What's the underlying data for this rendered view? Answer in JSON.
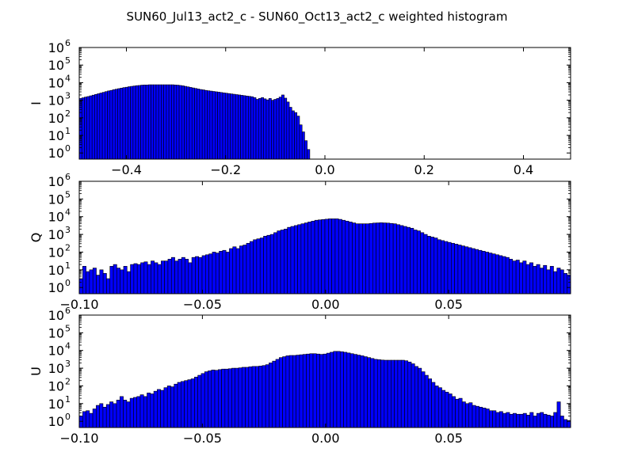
{
  "title": "SUN60_Jul13_act2_c - SUN60_Oct13_act2_c weighted histogram",
  "colors": {
    "bar_fill": "#0000ff",
    "bar_edge": "#000000",
    "background": "#ffffff",
    "frame": "#000000"
  },
  "chart_data": [
    {
      "type": "bar",
      "panel": "I",
      "ylabel": "I",
      "yscale": "log",
      "xlim": [
        -0.495,
        0.495
      ],
      "ylim_exp": [
        -0.35,
        6
      ],
      "xticks": [
        -0.4,
        -0.2,
        0.0,
        0.2,
        0.4
      ],
      "xtick_labels": [
        "−0.4",
        "−0.2",
        "0.0",
        "0.2",
        "0.4"
      ],
      "ytick_exps": [
        0,
        1,
        2,
        3,
        4,
        5,
        6
      ],
      "bin_range": [
        -0.495,
        -0.0305
      ],
      "bin_log10_counts": [
        3.1,
        3.14,
        3.18,
        3.21,
        3.25,
        3.29,
        3.33,
        3.37,
        3.41,
        3.45,
        3.49,
        3.53,
        3.56,
        3.6,
        3.63,
        3.66,
        3.69,
        3.72,
        3.74,
        3.77,
        3.79,
        3.81,
        3.83,
        3.84,
        3.86,
        3.87,
        3.87,
        3.88,
        3.88,
        3.88,
        3.88,
        3.88,
        3.88,
        3.88,
        3.88,
        3.88,
        3.88,
        3.87,
        3.86,
        3.84,
        3.82,
        3.79,
        3.76,
        3.73,
        3.7,
        3.67,
        3.64,
        3.61,
        3.59,
        3.56,
        3.54,
        3.52,
        3.5,
        3.48,
        3.46,
        3.44,
        3.42,
        3.4,
        3.38,
        3.36,
        3.34,
        3.32,
        3.3,
        3.28,
        3.26,
        3.24,
        3.22,
        3.2,
        3.15,
        3.05,
        3.1,
        3.15,
        3.08,
        3.02,
        3.1,
        3.0,
        3.05,
        3.1,
        3.18,
        3.3,
        3.12,
        2.9,
        2.6,
        2.4,
        2.3,
        2.1,
        1.6,
        1.2,
        0.7,
        0.2
      ]
    },
    {
      "type": "bar",
      "panel": "Q",
      "ylabel": "Q",
      "yscale": "log",
      "xlim": [
        -0.1,
        0.0995
      ],
      "ylim_exp": [
        -0.35,
        6
      ],
      "xticks": [
        -0.1,
        -0.05,
        0.0,
        0.05
      ],
      "xtick_labels": [
        "−0.10",
        "−0.05",
        "0.00",
        "0.05"
      ],
      "ytick_exps": [
        0,
        1,
        2,
        3,
        4,
        5,
        6
      ],
      "bin_range": [
        -0.1,
        0.0995
      ],
      "bin_log10_counts": [
        0.5,
        1.2,
        0.9,
        1.0,
        1.1,
        0.7,
        1.0,
        0.8,
        0.5,
        1.2,
        1.3,
        1.1,
        1.0,
        1.2,
        0.9,
        1.3,
        1.35,
        1.3,
        1.4,
        1.45,
        1.3,
        1.5,
        1.4,
        1.3,
        1.5,
        1.5,
        1.6,
        1.7,
        1.5,
        1.6,
        1.7,
        1.6,
        1.4,
        1.7,
        1.75,
        1.7,
        1.8,
        1.85,
        1.9,
        2.0,
        1.95,
        2.05,
        2.1,
        2.0,
        2.2,
        2.3,
        2.2,
        2.35,
        2.4,
        2.5,
        2.6,
        2.7,
        2.75,
        2.8,
        2.9,
        2.95,
        3.0,
        3.1,
        3.2,
        3.25,
        3.3,
        3.4,
        3.45,
        3.5,
        3.55,
        3.6,
        3.65,
        3.7,
        3.75,
        3.8,
        3.82,
        3.84,
        3.86,
        3.88,
        3.88,
        3.88,
        3.85,
        3.8,
        3.75,
        3.7,
        3.65,
        3.6,
        3.6,
        3.6,
        3.6,
        3.62,
        3.64,
        3.65,
        3.66,
        3.65,
        3.64,
        3.62,
        3.6,
        3.55,
        3.5,
        3.45,
        3.4,
        3.35,
        3.25,
        3.2,
        3.1,
        3.0,
        2.9,
        2.85,
        2.8,
        2.7,
        2.65,
        2.6,
        2.55,
        2.5,
        2.45,
        2.4,
        2.35,
        2.3,
        2.25,
        2.2,
        2.15,
        2.1,
        2.05,
        2.0,
        1.95,
        1.9,
        1.85,
        1.8,
        1.75,
        1.7,
        1.6,
        1.5,
        1.55,
        1.4,
        1.5,
        1.3,
        1.4,
        1.2,
        1.3,
        1.1,
        1.25,
        1.0,
        1.2,
        0.9,
        1.1,
        1.0,
        0.8,
        0.7
      ]
    },
    {
      "type": "bar",
      "panel": "U",
      "ylabel": "U",
      "yscale": "log",
      "xlim": [
        -0.1,
        0.0995
      ],
      "ylim_exp": [
        -0.35,
        6
      ],
      "xticks": [
        -0.1,
        -0.05,
        0.0,
        0.05
      ],
      "xtick_labels": [
        "−0.10",
        "−0.05",
        "0.00",
        "0.05"
      ],
      "ytick_exps": [
        0,
        1,
        2,
        3,
        4,
        5,
        6
      ],
      "bin_range": [
        -0.1,
        0.0995
      ],
      "bin_log10_counts": [
        0.3,
        0.55,
        0.6,
        0.45,
        0.7,
        0.9,
        1.0,
        0.8,
        0.95,
        1.1,
        1.0,
        1.2,
        1.4,
        1.2,
        1.1,
        1.3,
        1.35,
        1.4,
        1.5,
        1.4,
        1.6,
        1.55,
        1.7,
        1.8,
        1.75,
        1.9,
        2.0,
        1.95,
        2.1,
        2.2,
        2.25,
        2.3,
        2.35,
        2.4,
        2.5,
        2.6,
        2.7,
        2.8,
        2.85,
        2.9,
        2.88,
        2.92,
        2.95,
        2.95,
        2.97,
        3.0,
        3.0,
        3.02,
        3.05,
        3.05,
        3.08,
        3.1,
        3.1,
        3.12,
        3.15,
        3.2,
        3.3,
        3.4,
        3.5,
        3.6,
        3.65,
        3.7,
        3.72,
        3.72,
        3.74,
        3.76,
        3.78,
        3.8,
        3.82,
        3.82,
        3.8,
        3.78,
        3.8,
        3.85,
        3.9,
        3.95,
        3.95,
        3.93,
        3.9,
        3.86,
        3.82,
        3.78,
        3.74,
        3.7,
        3.65,
        3.6,
        3.55,
        3.5,
        3.48,
        3.46,
        3.45,
        3.45,
        3.45,
        3.45,
        3.45,
        3.45,
        3.42,
        3.35,
        3.25,
        3.1,
        3.0,
        2.8,
        2.6,
        2.4,
        2.2,
        2.0,
        1.9,
        1.75,
        1.65,
        1.55,
        1.4,
        1.25,
        1.3,
        1.1,
        1.0,
        1.05,
        0.9,
        0.85,
        0.8,
        0.75,
        0.7,
        0.6,
        0.6,
        0.5,
        0.55,
        0.45,
        0.5,
        0.4,
        0.45,
        0.4,
        0.4,
        0.45,
        0.35,
        0.5,
        0.3,
        0.45,
        0.5,
        0.4,
        0.35,
        0.3,
        0.5,
        1.1,
        0.3,
        0.1,
        0.05
      ]
    }
  ]
}
